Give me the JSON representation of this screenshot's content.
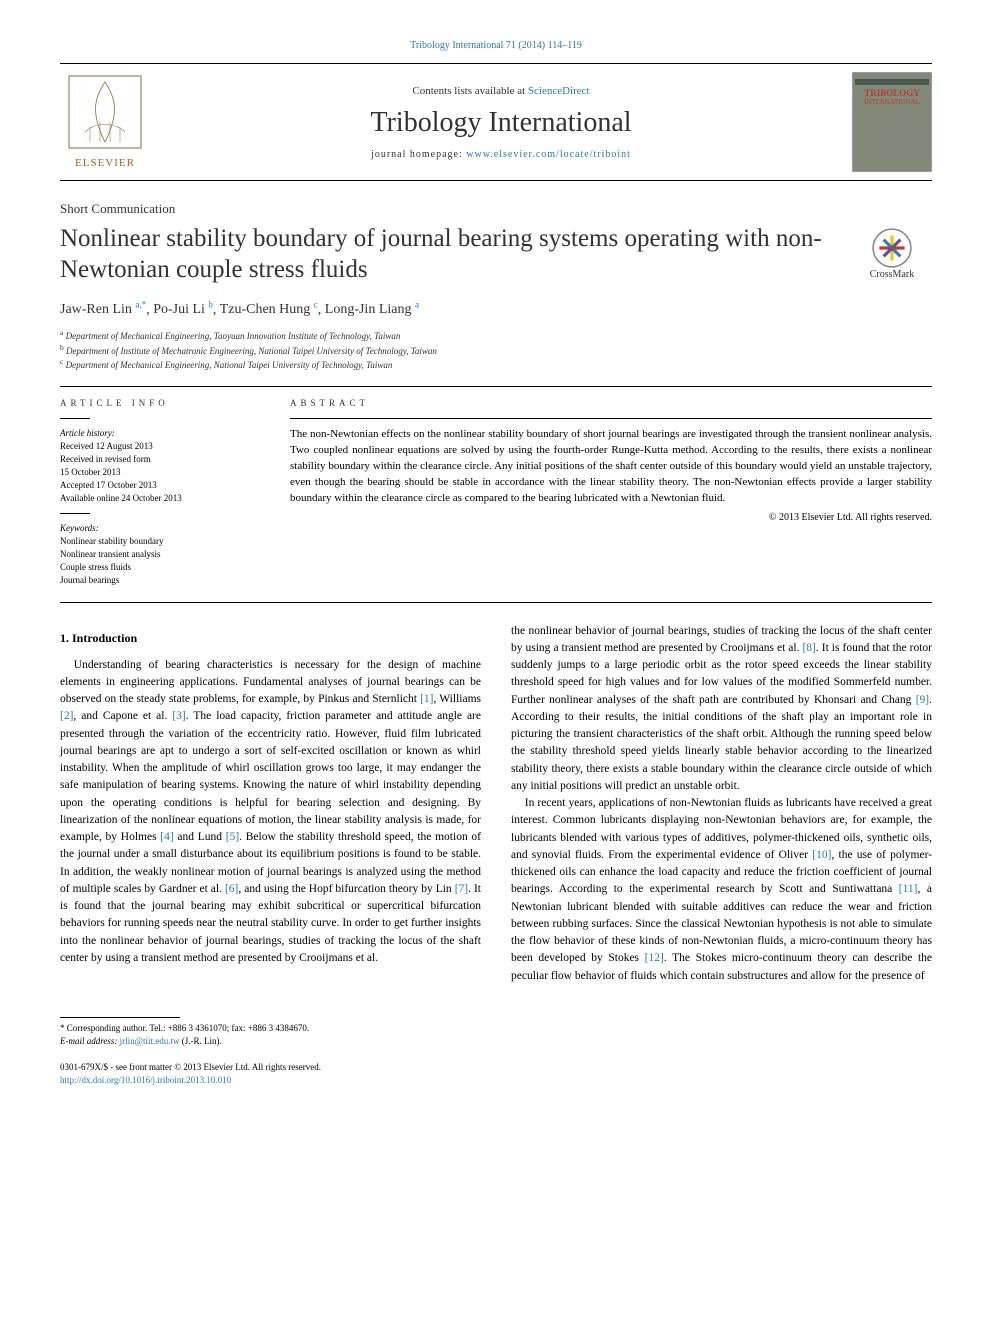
{
  "top_citation": "Tribology International 71 (2014) 114–119",
  "header": {
    "contents_prefix": "Contents lists available at ",
    "contents_link": "ScienceDirect",
    "journal_name": "Tribology International",
    "homepage_prefix": "journal homepage: ",
    "homepage_url": "www.elsevier.com/locate/triboint",
    "cover_title": "TRIBOLOGY",
    "cover_subtitle": "INTERNATIONAL",
    "crossmark": "CrossMark"
  },
  "article_type": "Short Communication",
  "title": "Nonlinear stability boundary of journal bearing systems operating with non-Newtonian couple stress fluids",
  "authors_html": [
    {
      "name": "Jaw-Ren Lin",
      "sup": "a,",
      "star": true
    },
    {
      "name": "Po-Jui Li",
      "sup": "b"
    },
    {
      "name": "Tzu-Chen Hung",
      "sup": "c"
    },
    {
      "name": "Long-Jin Liang",
      "sup": "a"
    }
  ],
  "affiliations": [
    {
      "mark": "a",
      "text": "Department of Mechanical Engineering, Taoyuan Innovation Institute of Technology, Taiwan"
    },
    {
      "mark": "b",
      "text": "Department of Institute of Mechatronic Engineering, National Taipei University of Technology, Taiwan"
    },
    {
      "mark": "c",
      "text": "Department of Mechanical Engineering, National Taipei University of Technology, Taiwan"
    }
  ],
  "article_info": {
    "heading": "ARTICLE INFO",
    "history_head": "Article history:",
    "history": [
      "Received 12 August 2013",
      "Received in revised form",
      "15 October 2013",
      "Accepted 17 October 2013",
      "Available online 24 October 2013"
    ],
    "keywords_head": "Keywords:",
    "keywords": [
      "Nonlinear stability boundary",
      "Nonlinear transient analysis",
      "Couple stress fluids",
      "Journal bearings"
    ]
  },
  "abstract": {
    "heading": "ABSTRACT",
    "text": "The non-Newtonian effects on the nonlinear stability boundary of short journal bearings are investigated through the transient nonlinear analysis. Two coupled nonlinear equations are solved by using the fourth-order Runge-Kutta method. According to the results, there exists a nonlinear stability boundary within the clearance circle. Any initial positions of the shaft center outside of this boundary would yield an unstable trajectory, even though the bearing should be stable in accordance with the linear stability theory. The non-Newtonian effects provide a larger stability boundary within the clearance circle as compared to the bearing lubricated with a Newtonian fluid.",
    "copyright": "© 2013 Elsevier Ltd. All rights reserved."
  },
  "section1": {
    "heading": "1. Introduction",
    "para1_a": "Understanding of bearing characteristics is necessary for the design of machine elements in engineering applications. Fundamental analyses of journal bearings can be observed on the steady state problems, for example, by Pinkus and Sternlicht ",
    "ref1": "[1]",
    "para1_b": ", Williams ",
    "ref2": "[2]",
    "para1_c": ", and Capone et al. ",
    "ref3": "[3]",
    "para1_d": ". The load capacity, friction parameter and attitude angle are presented through the variation of the eccentricity ratio. However, fluid film lubricated journal bearings are apt to undergo a sort of self-excited oscillation or known as whirl instability. When the amplitude of whirl oscillation grows too large, it may endanger the safe manipulation of bearing systems. Knowing the nature of whirl instability depending upon the operating conditions is helpful for bearing selection and designing. By linearization of the nonlinear equations of motion, the linear stability analysis is made, for example, by Holmes ",
    "ref4": "[4]",
    "para1_e": " and Lund ",
    "ref5": "[5]",
    "para1_f": ". Below the stability threshold speed, the motion of the journal under a small disturbance about its equilibrium positions is found to be stable. In addition, the weakly nonlinear motion of journal bearings is analyzed using the method of multiple scales by Gardner et al. ",
    "ref6": "[6]",
    "para1_g": ", and using the Hopf bifurcation theory by Lin ",
    "ref7": "[7]",
    "para1_h": ". It is found that the journal bearing may exhibit subcritical or supercritical bifurcation behaviors for running speeds near the neutral stability curve. In order to get further insights into the nonlinear behavior of journal bearings, studies of tracking the locus of the shaft center by using a transient method are presented by Crooijmans et al. ",
    "ref8": "[8]",
    "para1_i": ". It is found that the rotor suddenly jumps to a large periodic orbit as the rotor speed exceeds the linear stability threshold speed for high values and for low values of the modified Sommerfeld number. Further nonlinear analyses of the shaft path are contributed by Khonsari and Chang ",
    "ref9": "[9]",
    "para1_j": ". According to their results, the initial conditions of the shaft play an important role in picturing the transient characteristics of the shaft orbit. Although the running speed below the stability threshold speed yields linearly stable behavior according to the linearized stability theory, there exists a stable boundary within the clearance circle outside of which any initial positions will predict an unstable orbit.",
    "para2_a": "In recent years, applications of non-Newtonian fluids as lubricants have received a great interest. Common lubricants displaying non-Newtonian behaviors are, for example, the lubricants blended with various types of additives, polymer-thickened oils, synthetic oils, and synovial fluids. From the experimental evidence of Oliver ",
    "ref10": "[10]",
    "para2_b": ", the use of polymer-thickened oils can enhance the load capacity and reduce the friction coefficient of journal bearings. According to the experimental research by Scott and Suntiwattana ",
    "ref11": "[11]",
    "para2_c": ", a Newtonian lubricant blended with suitable additives can reduce the wear and friction between rubbing surfaces. Since the classical Newtonian hypothesis is not able to simulate the flow behavior of these kinds of non-Newtonian fluids, a micro-continuum theory has been developed by Stokes ",
    "ref12": "[12]",
    "para2_d": ". The Stokes micro-continuum theory can describe the peculiar flow behavior of fluids which contain substructures and allow for the presence of"
  },
  "footnote": {
    "corr": "* Corresponding author. Tel.: +886 3 4361070; fax: +886 3 4384670.",
    "email_label": "E-mail address: ",
    "email": "jrlin@tiit.edu.tw",
    "email_who": " (J.-R. Lin)."
  },
  "bottom": {
    "issn": "0301-679X/$ - see front matter © 2013 Elsevier Ltd. All rights reserved.",
    "doi": "http://dx.doi.org/10.1016/j.triboint.2013.10.010"
  },
  "elsevier_label": "ELSEVIER"
}
